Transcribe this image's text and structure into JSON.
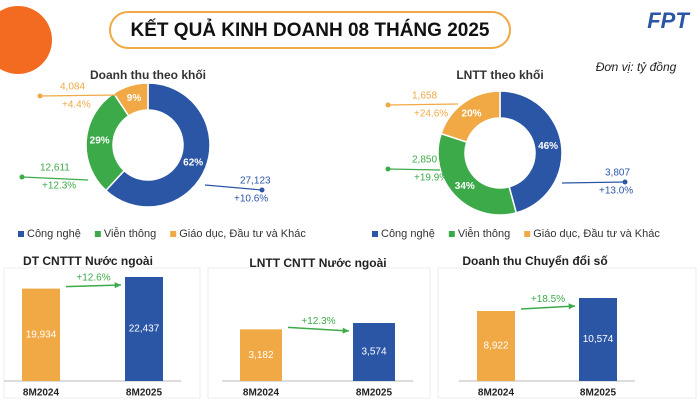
{
  "title": "KẾT QUẢ KINH DOANH 08 THÁNG 2025",
  "logo": "FPT",
  "unit": "Đơn vị: tỷ đồng",
  "chart_data": [
    {
      "type": "donut",
      "title": "Doanh thu theo khối",
      "categories": [
        "Công nghệ",
        "Viễn thông",
        "Giáo dục, Đầu tư và Khác"
      ],
      "colors": [
        "#2b56a6",
        "#3daa4a",
        "#f0a945"
      ],
      "values": [
        27123,
        12611,
        4084
      ],
      "value_labels": [
        "27,123",
        "12,611",
        "4,084"
      ],
      "shares": [
        62,
        29,
        9
      ],
      "share_labels": [
        "62%",
        "29%",
        "9%"
      ],
      "growth_labels": [
        "+10.6%",
        "+12.3%",
        "+4.4%"
      ]
    },
    {
      "type": "donut",
      "title": "LNTT theo khối",
      "categories": [
        "Công nghệ",
        "Viễn thông",
        "Giáo dục, Đầu tư và Khác"
      ],
      "colors": [
        "#2b56a6",
        "#3daa4a",
        "#f0a945"
      ],
      "values": [
        3807,
        2850,
        1658
      ],
      "value_labels": [
        "3,807",
        "2,850",
        "1,658"
      ],
      "shares": [
        46,
        34,
        20
      ],
      "share_labels": [
        "46%",
        "34%",
        "20%"
      ],
      "growth_labels": [
        "+13.0%",
        "+19.9%",
        "+24.6%"
      ]
    },
    {
      "type": "bar",
      "title": "DT CNTTT Nước ngoài",
      "categories": [
        "8M2024",
        "8M2025"
      ],
      "values": [
        19934,
        22437
      ],
      "value_labels": [
        "19,934",
        "22,437"
      ],
      "colors": [
        "#f0a945",
        "#2b56a6"
      ],
      "growth_label": "+12.6%"
    },
    {
      "type": "bar",
      "title": "LNTT CNTT Nước ngoài",
      "categories": [
        "8M2024",
        "8M2025"
      ],
      "values": [
        3182,
        3574
      ],
      "value_labels": [
        "3,182",
        "3,574"
      ],
      "colors": [
        "#f0a945",
        "#2b56a6"
      ],
      "growth_label": "+12.3%"
    },
    {
      "type": "bar",
      "title": "Doanh thu Chuyển đổi số",
      "categories": [
        "8M2024",
        "8M2025"
      ],
      "values": [
        8922,
        10574
      ],
      "value_labels": [
        "8,922",
        "10,574"
      ],
      "colors": [
        "#f0a945",
        "#2b56a6"
      ],
      "growth_label": "+18.5%"
    }
  ]
}
